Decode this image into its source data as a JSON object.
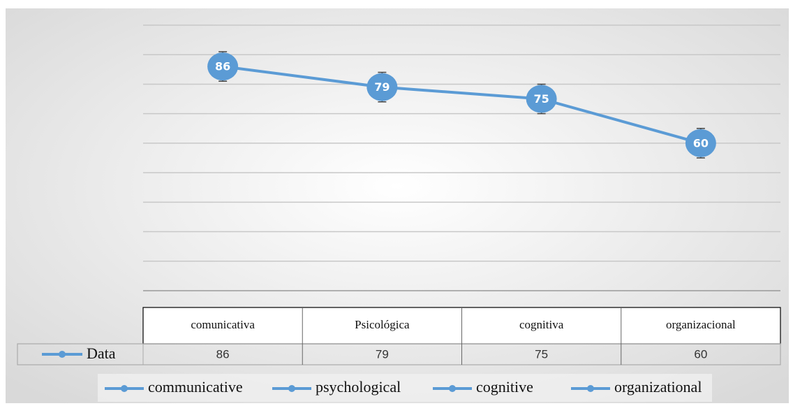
{
  "chart_data": {
    "type": "line",
    "categories": [
      "comunicativa",
      "Psicológica",
      "cognitiva",
      "organizacional"
    ],
    "series": [
      {
        "name": "Data",
        "color": "#5b9bd5",
        "values": [
          86,
          79,
          75,
          60
        ],
        "errors": [
          5,
          5,
          5,
          5
        ]
      }
    ],
    "ylim": [
      10,
      100
    ],
    "yticks": [
      10,
      20,
      30,
      40,
      50,
      60,
      70,
      80,
      90,
      100
    ],
    "grid": true,
    "legend": [
      "communicative",
      "psychological",
      "cognitive",
      "organizational"
    ]
  }
}
